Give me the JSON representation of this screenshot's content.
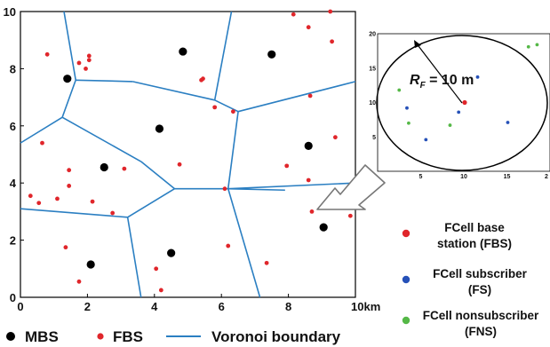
{
  "main_plot": {
    "x_ticks": [
      "0",
      "2",
      "4",
      "6",
      "8"
    ],
    "x_unit_tick": "10km",
    "y_ticks": [
      "0",
      "2",
      "4",
      "6",
      "8",
      "10"
    ],
    "xlim": [
      0,
      10
    ],
    "ylim": [
      0,
      10
    ],
    "mbs": [
      [
        1.4,
        7.65
      ],
      [
        4.85,
        8.6
      ],
      [
        7.5,
        8.5
      ],
      [
        4.15,
        5.9
      ],
      [
        2.5,
        4.55
      ],
      [
        8.6,
        5.3
      ],
      [
        9.05,
        2.45
      ],
      [
        2.1,
        1.15
      ],
      [
        4.5,
        1.55
      ]
    ],
    "fbs": [
      [
        0.8,
        8.5
      ],
      [
        1.75,
        8.2
      ],
      [
        2.05,
        8.3
      ],
      [
        1.95,
        8.0
      ],
      [
        2.05,
        8.45
      ],
      [
        5.4,
        7.6
      ],
      [
        5.45,
        7.65
      ],
      [
        6.35,
        6.5
      ],
      [
        5.8,
        6.65
      ],
      [
        8.15,
        9.9
      ],
      [
        9.25,
        10.0
      ],
      [
        8.6,
        9.45
      ],
      [
        9.3,
        8.95
      ],
      [
        8.65,
        7.05
      ],
      [
        0.65,
        5.4
      ],
      [
        1.45,
        4.45
      ],
      [
        3.1,
        4.5
      ],
      [
        4.75,
        4.65
      ],
      [
        7.95,
        4.6
      ],
      [
        8.6,
        4.1
      ],
      [
        9.4,
        5.6
      ],
      [
        1.45,
        3.9
      ],
      [
        0.3,
        3.55
      ],
      [
        0.55,
        3.3
      ],
      [
        1.1,
        3.45
      ],
      [
        2.15,
        3.35
      ],
      [
        2.75,
        2.95
      ],
      [
        6.1,
        3.8
      ],
      [
        8.7,
        3.0
      ],
      [
        9.85,
        2.85
      ],
      [
        1.35,
        1.75
      ],
      [
        1.75,
        0.55
      ],
      [
        4.05,
        1.0
      ],
      [
        4.2,
        0.25
      ],
      [
        6.2,
        1.8
      ],
      [
        7.35,
        1.2
      ]
    ],
    "voronoi_segments": [
      [
        [
          1.3,
          10.0
        ],
        [
          1.65,
          7.6
        ]
      ],
      [
        [
          1.65,
          7.6
        ],
        [
          3.35,
          7.55
        ]
      ],
      [
        [
          3.35,
          7.55
        ],
        [
          5.8,
          6.9
        ]
      ],
      [
        [
          5.8,
          6.9
        ],
        [
          6.3,
          10.0
        ]
      ],
      [
        [
          1.65,
          7.6
        ],
        [
          1.25,
          6.3
        ]
      ],
      [
        [
          0.0,
          5.4
        ],
        [
          1.25,
          6.3
        ]
      ],
      [
        [
          1.25,
          6.3
        ],
        [
          3.6,
          4.75
        ]
      ],
      [
        [
          3.6,
          4.75
        ],
        [
          4.6,
          3.8
        ]
      ],
      [
        [
          5.8,
          6.9
        ],
        [
          6.5,
          6.5
        ]
      ],
      [
        [
          6.5,
          6.5
        ],
        [
          6.2,
          3.8
        ]
      ],
      [
        [
          4.6,
          3.8
        ],
        [
          6.2,
          3.8
        ]
      ],
      [
        [
          6.2,
          3.8
        ],
        [
          7.9,
          3.75
        ]
      ],
      [
        [
          6.5,
          6.5
        ],
        [
          10.0,
          7.55
        ]
      ],
      [
        [
          0.0,
          3.1
        ],
        [
          3.2,
          2.8
        ]
      ],
      [
        [
          3.2,
          2.8
        ],
        [
          4.6,
          3.8
        ]
      ],
      [
        [
          3.2,
          2.8
        ],
        [
          3.6,
          0.0
        ]
      ],
      [
        [
          6.2,
          3.8
        ],
        [
          7.15,
          0.0
        ]
      ],
      [
        [
          6.2,
          3.8
        ],
        [
          10.0,
          4.0
        ]
      ]
    ]
  },
  "inset": {
    "x_ticks": [
      "5",
      "10",
      "15",
      "2"
    ],
    "y_ticks": [
      "5",
      "10",
      "15",
      "20"
    ],
    "rf_label": "R",
    "rf_sub": "F",
    "rf_value": " = 10 m",
    "fbs": [
      10.1,
      10.0
    ],
    "fs": [
      [
        11.6,
        13.7
      ],
      [
        3.4,
        9.2
      ],
      [
        9.4,
        8.6
      ],
      [
        15.1,
        7.1
      ],
      [
        5.6,
        4.6
      ]
    ],
    "fns": [
      [
        17.5,
        18.1
      ],
      [
        18.5,
        18.4
      ],
      [
        2.5,
        11.8
      ],
      [
        3.6,
        7.0
      ],
      [
        8.4,
        6.7
      ]
    ]
  },
  "legend_bottom": {
    "mbs_label": "MBS",
    "fbs_label": "FBS",
    "voronoi_label": "Voronoi boundary"
  },
  "legend_side": {
    "fbs_line1": "FCell base",
    "fbs_line2": "station (FBS)",
    "fs_line1": "FCell subscriber",
    "fs_line2": "(FS)",
    "fns_line1": "FCell nonsubscriber",
    "fns_line2": "(FNS)"
  },
  "colors": {
    "mbs": "#000000",
    "fbs": "#e0262b",
    "fs": "#2651b8",
    "fns": "#55b847",
    "voronoi": "#2b7fc2"
  }
}
